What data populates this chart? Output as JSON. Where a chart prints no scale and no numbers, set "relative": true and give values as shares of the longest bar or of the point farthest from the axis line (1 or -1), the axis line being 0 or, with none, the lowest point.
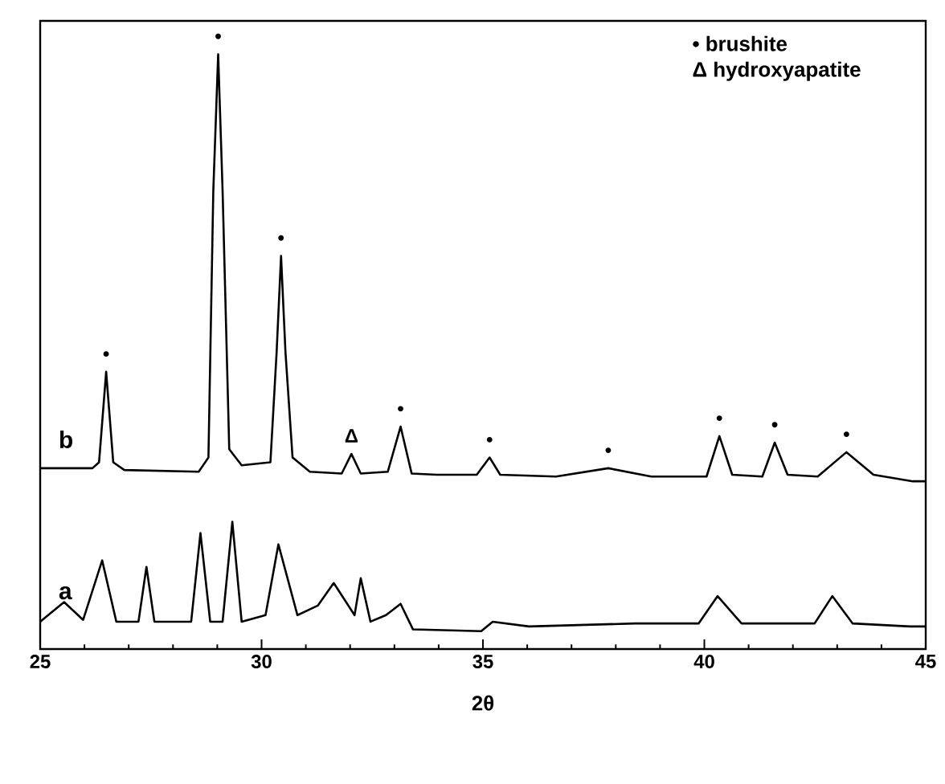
{
  "chart_data": {
    "type": "line",
    "relative": true,
    "xlabel": "2θ",
    "xlim": [
      25,
      45
    ],
    "xticks": [
      25,
      30,
      35,
      40,
      45
    ],
    "series": [
      {
        "name": "b",
        "color": "#000000",
        "x": [
          25.0,
          26.18,
          26.33,
          26.49,
          26.65,
          26.9,
          28.58,
          28.8,
          28.91,
          29.02,
          29.12,
          29.27,
          29.55,
          30.2,
          30.34,
          30.44,
          30.54,
          30.7,
          31.09,
          31.81,
          32.03,
          32.24,
          32.85,
          33.14,
          33.39,
          33.96,
          34.86,
          35.15,
          35.39,
          36.65,
          37.83,
          38.8,
          40.05,
          40.34,
          40.63,
          41.31,
          41.59,
          41.88,
          42.56,
          43.21,
          43.82,
          44.71,
          45.0
        ],
        "values": [
          0.304,
          0.304,
          0.314,
          0.466,
          0.314,
          0.301,
          0.298,
          0.322,
          0.77,
          1.0,
          0.77,
          0.336,
          0.309,
          0.314,
          0.499,
          0.661,
          0.499,
          0.322,
          0.298,
          0.295,
          0.328,
          0.295,
          0.298,
          0.374,
          0.295,
          0.293,
          0.293,
          0.322,
          0.293,
          0.29,
          0.304,
          0.29,
          0.29,
          0.358,
          0.293,
          0.29,
          0.347,
          0.293,
          0.29,
          0.331,
          0.293,
          0.282,
          0.282
        ]
      },
      {
        "name": "a",
        "color": "#000000",
        "x": [
          25.0,
          25.54,
          25.97,
          26.4,
          26.72,
          27.22,
          27.4,
          27.58,
          28.41,
          28.62,
          28.84,
          29.12,
          29.34,
          29.55,
          30.09,
          30.38,
          30.81,
          31.27,
          31.63,
          32.1,
          32.24,
          32.46,
          32.81,
          33.14,
          33.42,
          34.96,
          35.22,
          36.04,
          38.44,
          39.87,
          40.3,
          40.84,
          42.49,
          42.89,
          43.35,
          44.64,
          45.0
        ],
        "values": [
          0.046,
          0.079,
          0.049,
          0.149,
          0.046,
          0.046,
          0.138,
          0.046,
          0.046,
          0.195,
          0.046,
          0.046,
          0.214,
          0.046,
          0.057,
          0.176,
          0.057,
          0.073,
          0.111,
          0.057,
          0.119,
          0.046,
          0.057,
          0.076,
          0.033,
          0.03,
          0.046,
          0.038,
          0.043,
          0.043,
          0.089,
          0.043,
          0.043,
          0.089,
          0.043,
          0.038,
          0.038
        ]
      }
    ],
    "annotations": [
      "• brushite",
      "Δ hydroxyapatite",
      {
        "text": "•",
        "x": 26.49,
        "y": 0.466
      },
      {
        "text": "•",
        "x": 29.02,
        "y": 1.0
      },
      {
        "text": "•",
        "x": 30.44,
        "y": 0.661
      },
      {
        "text": "Δ",
        "x": 32.03,
        "y": 0.328
      },
      {
        "text": "•",
        "x": 33.14,
        "y": 0.374
      },
      {
        "text": "•",
        "x": 35.15,
        "y": 0.322
      },
      {
        "text": "•",
        "x": 37.83,
        "y": 0.304
      },
      {
        "text": "•",
        "x": 40.34,
        "y": 0.358
      },
      {
        "text": "•",
        "x": 41.59,
        "y": 0.347
      },
      {
        "text": "•",
        "x": 43.21,
        "y": 0.331
      }
    ]
  }
}
